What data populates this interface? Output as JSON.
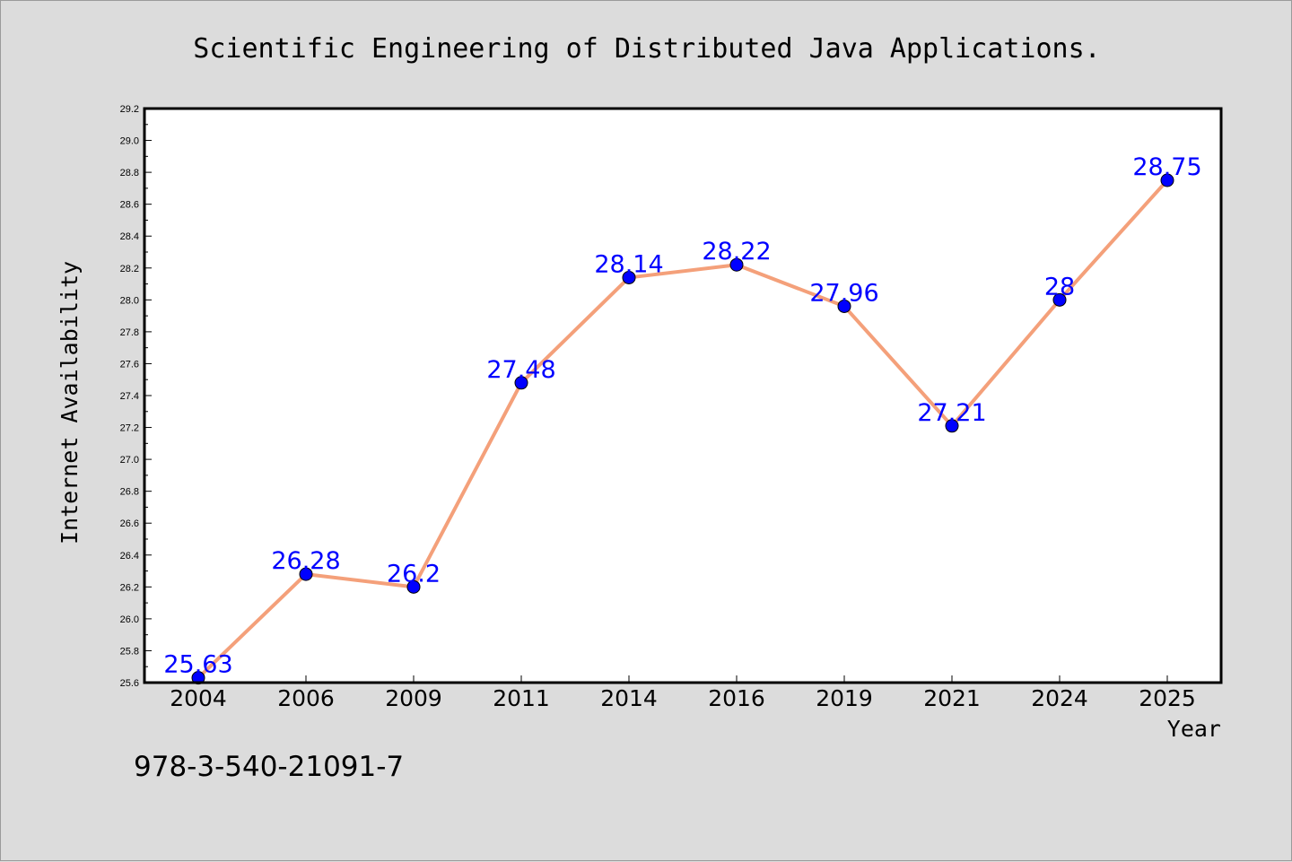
{
  "chart_data": {
    "type": "line",
    "title": "Scientific Engineering of Distributed Java Applications.",
    "xlabel": "Year",
    "ylabel": "Internet Availability",
    "categories": [
      "2004",
      "2006",
      "2009",
      "2011",
      "2014",
      "2016",
      "2019",
      "2021",
      "2024",
      "2025"
    ],
    "series": [
      {
        "values": [
          25.63,
          26.28,
          26.2,
          27.48,
          28.14,
          28.22,
          27.96,
          27.21,
          28,
          28.75
        ]
      }
    ],
    "data_labels": [
      "25.63",
      "26.28",
      "26.2",
      "27.48",
      "28.14",
      "28.22",
      "27.96",
      "27.21",
      "28",
      "28.75"
    ],
    "ylim": [
      25.6,
      29.2
    ],
    "yticks": [
      "25.6",
      "25.8",
      "26.0",
      "26.2",
      "26.4",
      "26.6",
      "26.8",
      "27.0",
      "27.2",
      "27.4",
      "27.6",
      "27.8",
      "28.0",
      "28.2",
      "28.4",
      "28.6",
      "28.8",
      "29.0",
      "29.2"
    ],
    "grid": false,
    "legend": "none",
    "colors": {
      "line": "#f4a07a",
      "marker": "#0000ff",
      "data_label": "#0000ff",
      "background": "#dcdcdc",
      "plot_background": "#ffffff"
    },
    "annotation": "978-3-540-21091-7"
  }
}
